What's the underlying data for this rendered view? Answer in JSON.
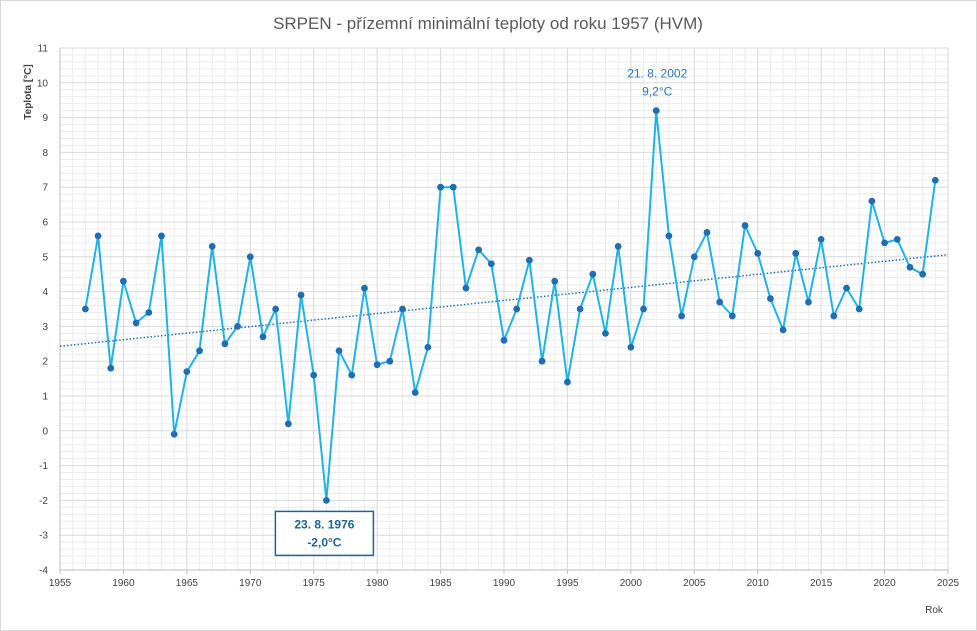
{
  "chart_data": {
    "type": "line",
    "title": "SRPEN - přízemní minimální teploty od roku 1957 (HVM)",
    "xlabel": "Rok",
    "ylabel": "Teplota [°C]",
    "xlim": [
      1955,
      2025
    ],
    "ylim": [
      -4,
      11
    ],
    "x_ticks": [
      1955,
      1960,
      1965,
      1970,
      1975,
      1980,
      1985,
      1990,
      1995,
      2000,
      2005,
      2010,
      2015,
      2020,
      2025
    ],
    "y_ticks": [
      -4,
      -3,
      -2,
      -1,
      0,
      1,
      2,
      3,
      4,
      5,
      6,
      7,
      8,
      9,
      10,
      11
    ],
    "grid": "major and minor",
    "colors": {
      "line": "#1fb4e6",
      "marker": "#1f6eb4",
      "trend": "#1f6eb4",
      "grid_major": "#d9d9d9",
      "grid_minor": "#ececec"
    },
    "series": [
      {
        "x": [
          1957,
          1958,
          1959,
          1960,
          1961,
          1962,
          1963,
          1964,
          1965,
          1966,
          1967,
          1968,
          1969,
          1970,
          1971,
          1972,
          1973,
          1974,
          1975,
          1976,
          1977,
          1978,
          1979,
          1980,
          1981,
          1982,
          1983,
          1984,
          1985,
          1986,
          1987,
          1988,
          1989,
          1990,
          1991,
          1992,
          1993,
          1994,
          1995,
          1996,
          1997,
          1998,
          1999,
          2000,
          2001,
          2002,
          2003,
          2004,
          2005,
          2006,
          2007,
          2008,
          2009,
          2010,
          2011,
          2012,
          2013,
          2014,
          2015,
          2016,
          2017,
          2018,
          2019,
          2020,
          2021,
          2022,
          2023,
          2024
        ],
        "y": [
          3.5,
          5.6,
          1.8,
          4.3,
          3.1,
          3.4,
          5.6,
          -0.1,
          1.7,
          2.3,
          5.3,
          2.5,
          3.0,
          5.0,
          2.7,
          3.5,
          0.2,
          3.9,
          1.6,
          -2.0,
          2.3,
          1.6,
          4.1,
          1.9,
          2.0,
          3.5,
          1.1,
          2.4,
          7.0,
          7.0,
          4.1,
          5.2,
          4.8,
          2.6,
          3.5,
          4.9,
          2.0,
          4.3,
          1.4,
          3.5,
          4.5,
          2.8,
          5.3,
          2.4,
          3.5,
          9.2,
          5.6,
          3.3,
          5.0,
          5.7,
          3.7,
          3.3,
          5.9,
          5.1,
          3.8,
          2.9,
          5.1,
          3.7,
          5.5,
          3.3,
          4.1,
          3.5,
          6.6,
          5.4,
          5.5,
          4.7,
          4.5,
          7.2
        ]
      }
    ],
    "trendline": {
      "style": "dotted linear",
      "start": [
        1955,
        2.43
      ],
      "end": [
        2025,
        5.06
      ]
    },
    "annotations": [
      {
        "x": 2002,
        "y": 9.2,
        "line1": "21. 8. 2002",
        "line2": "9,2°C",
        "boxed": false
      },
      {
        "x": 1976,
        "y": -2.0,
        "line1": "23. 8. 1976",
        "line2": "-2,0°C",
        "boxed": true
      }
    ]
  }
}
